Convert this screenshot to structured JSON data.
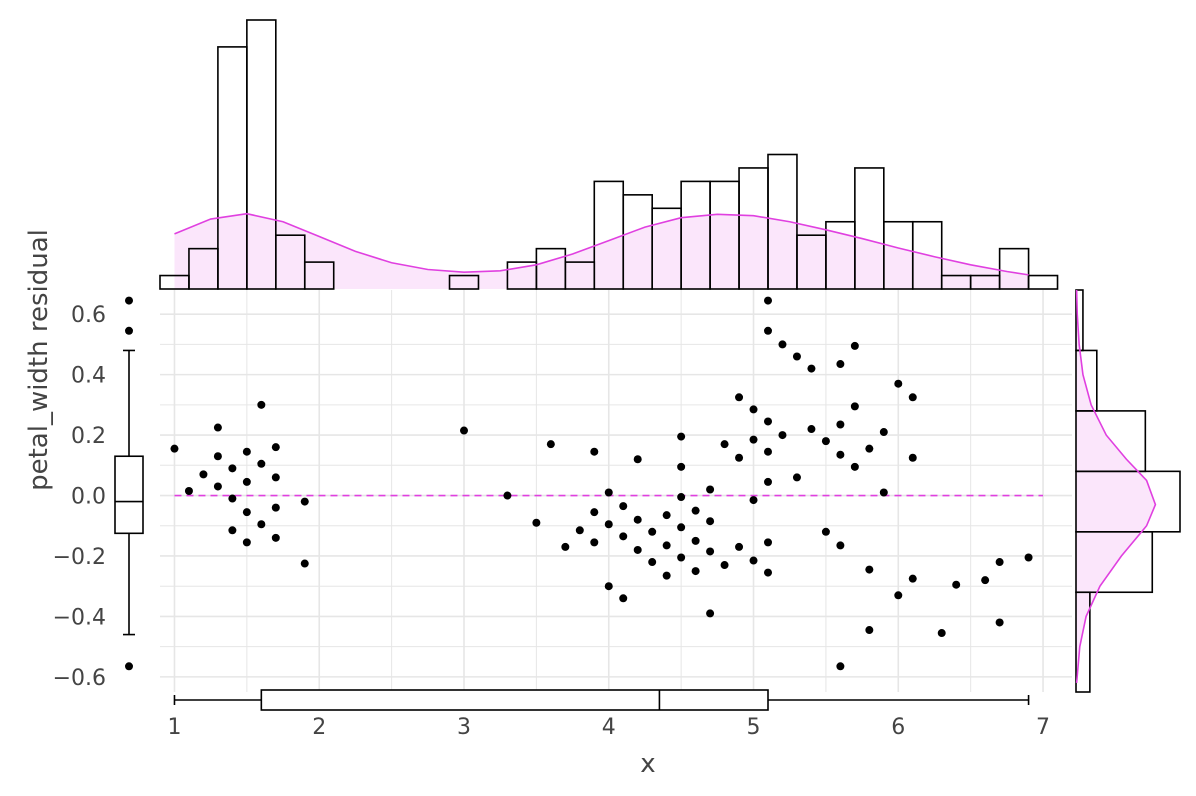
{
  "chart_data": {
    "type": "scatter",
    "xlabel": "x",
    "ylabel": "petal_width residual",
    "xlim": [
      0.9,
      7.2
    ],
    "ylim": [
      -0.65,
      0.68
    ],
    "x_ticks": [
      1,
      2,
      3,
      4,
      5,
      6,
      7
    ],
    "y_ticks": [
      -0.6,
      -0.4,
      -0.2,
      0.0,
      0.2,
      0.4,
      0.6
    ],
    "x_tick_labels": [
      "1",
      "2",
      "3",
      "4",
      "5",
      "6",
      "7"
    ],
    "y_tick_labels": [
      "−0.6",
      "−0.4",
      "−0.2",
      "0.0",
      "0.2",
      "0.4",
      "0.6"
    ],
    "grid": true,
    "reference_line": {
      "y": 0,
      "style": "dashed",
      "color": "#e040e0"
    },
    "points": [
      [
        1.0,
        0.155
      ],
      [
        1.1,
        0.015
      ],
      [
        1.2,
        0.07
      ],
      [
        1.3,
        0.225
      ],
      [
        1.3,
        0.13
      ],
      [
        1.3,
        0.03
      ],
      [
        1.4,
        0.09
      ],
      [
        1.4,
        -0.01
      ],
      [
        1.4,
        -0.115
      ],
      [
        1.5,
        0.145
      ],
      [
        1.5,
        0.045
      ],
      [
        1.5,
        -0.055
      ],
      [
        1.5,
        -0.155
      ],
      [
        1.6,
        0.3
      ],
      [
        1.6,
        0.105
      ],
      [
        1.6,
        -0.095
      ],
      [
        1.7,
        0.16
      ],
      [
        1.7,
        0.06
      ],
      [
        1.7,
        -0.04
      ],
      [
        1.7,
        -0.14
      ],
      [
        1.9,
        -0.02
      ],
      [
        1.9,
        -0.225
      ],
      [
        3.0,
        0.215
      ],
      [
        3.3,
        0.0
      ],
      [
        3.5,
        -0.09
      ],
      [
        3.6,
        0.17
      ],
      [
        3.7,
        -0.17
      ],
      [
        3.8,
        -0.115
      ],
      [
        3.9,
        0.145
      ],
      [
        3.9,
        -0.055
      ],
      [
        3.9,
        -0.155
      ],
      [
        4.0,
        0.01
      ],
      [
        4.0,
        -0.095
      ],
      [
        4.0,
        -0.3
      ],
      [
        4.1,
        -0.035
      ],
      [
        4.1,
        -0.135
      ],
      [
        4.1,
        -0.34
      ],
      [
        4.2,
        0.12
      ],
      [
        4.2,
        -0.08
      ],
      [
        4.2,
        -0.18
      ],
      [
        4.3,
        -0.12
      ],
      [
        4.3,
        -0.22
      ],
      [
        4.4,
        -0.065
      ],
      [
        4.4,
        -0.165
      ],
      [
        4.4,
        -0.265
      ],
      [
        4.5,
        0.195
      ],
      [
        4.5,
        0.095
      ],
      [
        4.5,
        -0.005
      ],
      [
        4.5,
        -0.105
      ],
      [
        4.5,
        -0.205
      ],
      [
        4.6,
        -0.05
      ],
      [
        4.6,
        -0.15
      ],
      [
        4.6,
        -0.25
      ],
      [
        4.7,
        0.02
      ],
      [
        4.7,
        -0.085
      ],
      [
        4.7,
        -0.185
      ],
      [
        4.7,
        -0.39
      ],
      [
        4.8,
        0.17
      ],
      [
        4.8,
        -0.23
      ],
      [
        4.9,
        0.325
      ],
      [
        4.9,
        0.125
      ],
      [
        4.9,
        -0.17
      ],
      [
        5.0,
        0.285
      ],
      [
        5.0,
        0.185
      ],
      [
        5.0,
        -0.015
      ],
      [
        5.0,
        -0.215
      ],
      [
        5.1,
        0.645
      ],
      [
        5.1,
        0.545
      ],
      [
        5.1,
        0.245
      ],
      [
        5.1,
        0.145
      ],
      [
        5.1,
        0.045
      ],
      [
        5.1,
        -0.155
      ],
      [
        5.1,
        -0.255
      ],
      [
        5.2,
        0.5
      ],
      [
        5.2,
        0.2
      ],
      [
        5.3,
        0.46
      ],
      [
        5.3,
        0.06
      ],
      [
        5.4,
        0.42
      ],
      [
        5.4,
        0.22
      ],
      [
        5.5,
        0.18
      ],
      [
        5.5,
        -0.12
      ],
      [
        5.6,
        0.435
      ],
      [
        5.6,
        0.235
      ],
      [
        5.6,
        0.135
      ],
      [
        5.6,
        -0.165
      ],
      [
        5.6,
        -0.565
      ],
      [
        5.7,
        0.495
      ],
      [
        5.7,
        0.295
      ],
      [
        5.7,
        0.095
      ],
      [
        5.8,
        0.155
      ],
      [
        5.8,
        -0.245
      ],
      [
        5.8,
        -0.445
      ],
      [
        5.9,
        0.21
      ],
      [
        5.9,
        0.01
      ],
      [
        6.0,
        0.37
      ],
      [
        6.0,
        -0.33
      ],
      [
        6.1,
        0.325
      ],
      [
        6.1,
        0.125
      ],
      [
        6.1,
        -0.275
      ],
      [
        6.3,
        -0.455
      ],
      [
        6.4,
        -0.295
      ],
      [
        6.6,
        -0.28
      ],
      [
        6.7,
        -0.22
      ],
      [
        6.7,
        -0.42
      ],
      [
        6.9,
        -0.205
      ]
    ],
    "marginal_x_histogram": {
      "bin_edges": [
        0.9,
        1.1,
        1.3,
        1.5,
        1.7,
        1.9,
        2.1,
        2.3,
        2.5,
        2.7,
        2.9,
        3.1,
        3.3,
        3.5,
        3.7,
        3.9,
        4.1,
        4.3,
        4.5,
        4.7,
        4.9,
        5.1,
        5.3,
        5.5,
        5.7,
        5.9,
        6.1,
        6.3,
        6.5,
        6.7,
        6.9,
        7.1
      ],
      "counts": [
        1,
        3,
        18,
        20,
        4,
        2,
        0,
        0,
        0,
        0,
        1,
        0,
        2,
        3,
        2,
        8,
        7,
        6,
        8,
        8,
        9,
        10,
        4,
        5,
        9,
        5,
        5,
        1,
        1,
        3,
        1
      ],
      "kde": [
        [
          1.0,
          4.1
        ],
        [
          1.25,
          5.2
        ],
        [
          1.5,
          5.6
        ],
        [
          1.75,
          5.0
        ],
        [
          2.0,
          3.9
        ],
        [
          2.25,
          2.8
        ],
        [
          2.5,
          1.95
        ],
        [
          2.75,
          1.45
        ],
        [
          3.0,
          1.25
        ],
        [
          3.25,
          1.35
        ],
        [
          3.5,
          1.8
        ],
        [
          3.75,
          2.6
        ],
        [
          4.0,
          3.6
        ],
        [
          4.25,
          4.6
        ],
        [
          4.5,
          5.3
        ],
        [
          4.75,
          5.55
        ],
        [
          5.0,
          5.45
        ],
        [
          5.25,
          5.0
        ],
        [
          5.5,
          4.4
        ],
        [
          5.75,
          3.75
        ],
        [
          6.0,
          3.05
        ],
        [
          6.25,
          2.4
        ],
        [
          6.5,
          1.8
        ],
        [
          6.75,
          1.3
        ],
        [
          6.9,
          1.05
        ]
      ]
    },
    "marginal_y_histogram": {
      "bin_edges": [
        -0.65,
        -0.32,
        -0.12,
        0.08,
        0.28,
        0.48,
        0.68
      ],
      "counts": [
        2,
        11,
        15,
        10,
        3,
        1
      ],
      "kde": [
        [
          -0.62,
          0.05
        ],
        [
          -0.5,
          0.3
        ],
        [
          -0.4,
          0.8
        ],
        [
          -0.3,
          1.9
        ],
        [
          -0.2,
          3.6
        ],
        [
          -0.1,
          5.6
        ],
        [
          -0.03,
          6.3
        ],
        [
          0.05,
          5.6
        ],
        [
          0.12,
          4.0
        ],
        [
          0.2,
          2.4
        ],
        [
          0.3,
          1.2
        ],
        [
          0.4,
          0.55
        ],
        [
          0.5,
          0.25
        ],
        [
          0.6,
          0.1
        ],
        [
          0.68,
          0.05
        ]
      ]
    },
    "marginal_y_box": {
      "min": -0.46,
      "q1": -0.125,
      "median": -0.02,
      "q3": 0.13,
      "max": 0.48,
      "outliers": [
        0.645,
        0.545,
        -0.565
      ]
    },
    "marginal_x_box": {
      "min": 1.0,
      "q1": 1.6,
      "median": 4.35,
      "q3": 5.1,
      "max": 6.9,
      "outliers": []
    },
    "colors": {
      "points": "#000000",
      "accent": "#e040e0",
      "fill": "#fbe6fb",
      "grid": "#e6e6e6",
      "outline": "#000000"
    }
  }
}
